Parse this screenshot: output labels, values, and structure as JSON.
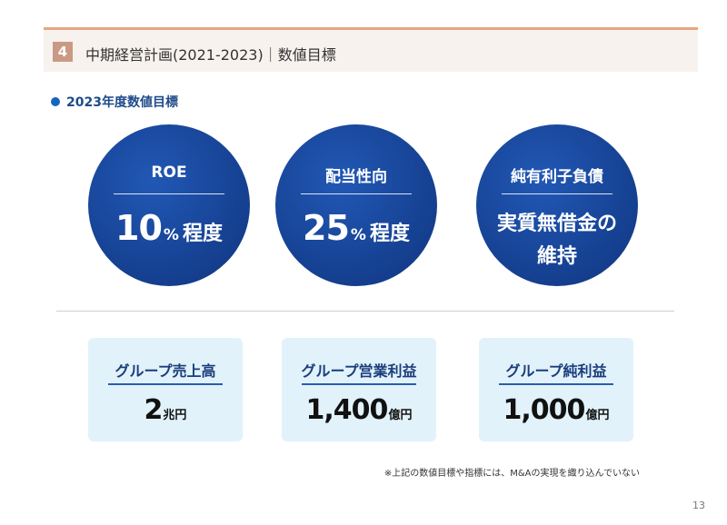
{
  "header": {
    "section_number": "4",
    "title": "中期経営計画(2021-2023)｜数値目標",
    "accent_color": "#e8a684",
    "band_color": "#f7f2ee"
  },
  "subheading": {
    "text": "2023年度数値目標",
    "bullet_color": "#1565c0"
  },
  "targets": [
    {
      "title": "ROE",
      "number": "10",
      "unit": "%",
      "suffix": "程度"
    },
    {
      "title": "配当性向",
      "number": "25",
      "unit": "%",
      "suffix": "程度"
    },
    {
      "title": "純有利子負債",
      "line1": "実質無借金の",
      "line2": "維持"
    }
  ],
  "circle_color": "#153f8f",
  "group_metrics": [
    {
      "title": "グループ売上高",
      "number": "2",
      "unit": "兆円"
    },
    {
      "title": "グループ営業利益",
      "number": "1,400",
      "unit": "億円"
    },
    {
      "title": "グループ純利益",
      "number": "1,000",
      "unit": "億円"
    }
  ],
  "card_color": "#e1f2fa",
  "footnote": "※上記の数値目標や指標には、M&Aの実現を織り込んでいない",
  "page_number": "13"
}
